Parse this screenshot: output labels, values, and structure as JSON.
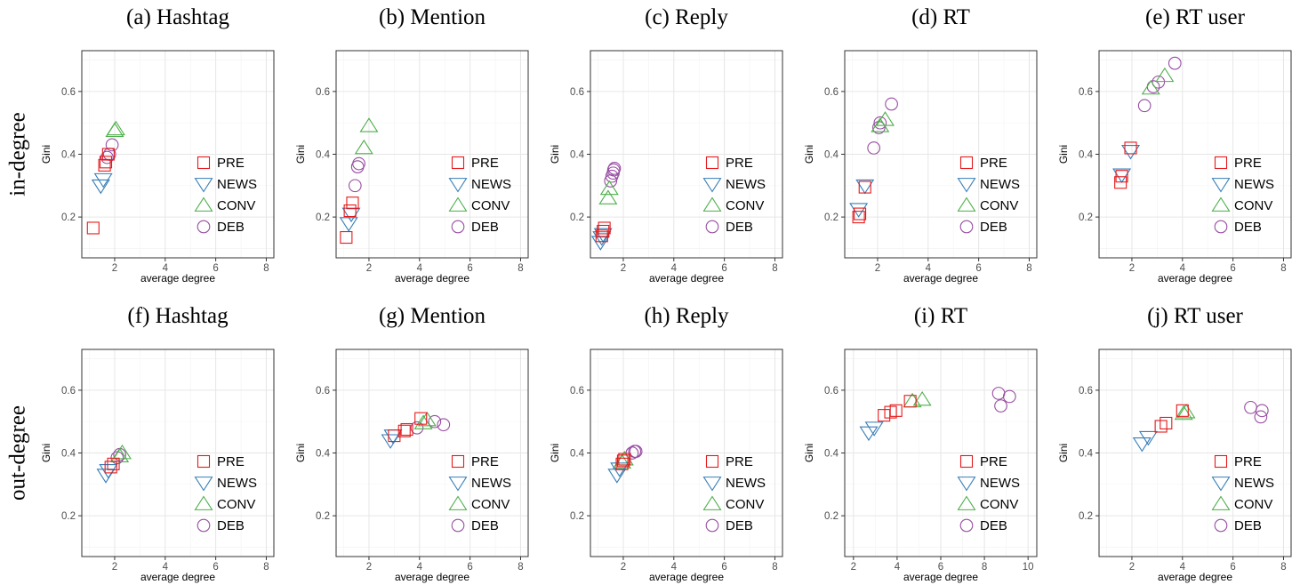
{
  "row_labels": [
    "in-degree",
    "out-degree"
  ],
  "legend": [
    {
      "key": "PRE",
      "label": "PRE",
      "color": "#e41a1c",
      "shape": "square"
    },
    {
      "key": "NEWS",
      "label": "NEWS",
      "color": "#377eb8",
      "shape": "triangle-down"
    },
    {
      "key": "CONV",
      "label": "CONV",
      "color": "#4daf4a",
      "shape": "triangle-up"
    },
    {
      "key": "DEB",
      "label": "DEB",
      "color": "#984ea3",
      "shape": "circle"
    }
  ],
  "chart_data": [
    {
      "type": "scatter",
      "title": "(a) Hashtag",
      "xlabel": "average degree",
      "ylabel": "Gini",
      "xlim": [
        0.7,
        8.3
      ],
      "ylim": [
        0.07,
        0.73
      ],
      "xticks": [
        2,
        4,
        6,
        8
      ],
      "yticks": [
        0.2,
        0.4,
        0.6
      ],
      "grid": true,
      "legend_position": "right",
      "series": [
        {
          "name": "PRE",
          "x": [
            1.15,
            1.6,
            1.65,
            1.75
          ],
          "y": [
            0.165,
            0.365,
            0.375,
            0.4
          ]
        },
        {
          "name": "NEWS",
          "x": [
            1.45,
            1.55
          ],
          "y": [
            0.3,
            0.32
          ]
        },
        {
          "name": "CONV",
          "x": [
            2.0,
            2.05
          ],
          "y": [
            0.475,
            0.48
          ]
        },
        {
          "name": "DEB",
          "x": [
            1.7,
            1.8,
            1.9
          ],
          "y": [
            0.39,
            0.4,
            0.43
          ]
        }
      ]
    },
    {
      "type": "scatter",
      "title": "(b) Mention",
      "xlabel": "average degree",
      "ylabel": "Gini",
      "xlim": [
        0.7,
        8.3
      ],
      "ylim": [
        0.07,
        0.73
      ],
      "xticks": [
        2,
        4,
        6,
        8
      ],
      "yticks": [
        0.2,
        0.4,
        0.6
      ],
      "grid": true,
      "legend_position": "right",
      "series": [
        {
          "name": "PRE",
          "x": [
            1.1,
            1.25,
            1.35
          ],
          "y": [
            0.135,
            0.22,
            0.245
          ]
        },
        {
          "name": "NEWS",
          "x": [
            1.2,
            1.3
          ],
          "y": [
            0.18,
            0.21
          ]
        },
        {
          "name": "CONV",
          "x": [
            1.8,
            2.0
          ],
          "y": [
            0.42,
            0.49
          ]
        },
        {
          "name": "DEB",
          "x": [
            1.45,
            1.55,
            1.6
          ],
          "y": [
            0.3,
            0.36,
            0.37
          ]
        }
      ]
    },
    {
      "type": "scatter",
      "title": "(c) Reply",
      "xlabel": "average degree",
      "ylabel": "Gini",
      "xlim": [
        0.7,
        8.3
      ],
      "ylim": [
        0.07,
        0.73
      ],
      "xticks": [
        2,
        4,
        6,
        8
      ],
      "yticks": [
        0.2,
        0.4,
        0.6
      ],
      "grid": true,
      "legend_position": "right",
      "series": [
        {
          "name": "PRE",
          "x": [
            1.15,
            1.2,
            1.25
          ],
          "y": [
            0.14,
            0.155,
            0.165
          ]
        },
        {
          "name": "NEWS",
          "x": [
            1.1,
            1.15,
            1.2
          ],
          "y": [
            0.12,
            0.135,
            0.145
          ]
        },
        {
          "name": "CONV",
          "x": [
            1.4,
            1.45
          ],
          "y": [
            0.26,
            0.29
          ]
        },
        {
          "name": "DEB",
          "x": [
            1.5,
            1.55,
            1.6,
            1.62,
            1.65
          ],
          "y": [
            0.315,
            0.33,
            0.34,
            0.35,
            0.355
          ]
        }
      ]
    },
    {
      "type": "scatter",
      "title": "(d) RT",
      "xlabel": "average degree",
      "ylabel": "Gini",
      "xlim": [
        0.7,
        8.3
      ],
      "ylim": [
        0.07,
        0.73
      ],
      "xticks": [
        2,
        4,
        6,
        8
      ],
      "yticks": [
        0.2,
        0.4,
        0.6
      ],
      "grid": true,
      "legend_position": "right",
      "series": [
        {
          "name": "PRE",
          "x": [
            1.25,
            1.3,
            1.5
          ],
          "y": [
            0.2,
            0.21,
            0.295
          ]
        },
        {
          "name": "NEWS",
          "x": [
            1.25,
            1.5
          ],
          "y": [
            0.225,
            0.3
          ]
        },
        {
          "name": "CONV",
          "x": [
            2.1,
            2.3
          ],
          "y": [
            0.49,
            0.51
          ]
        },
        {
          "name": "DEB",
          "x": [
            1.85,
            2.05,
            2.1,
            2.55
          ],
          "y": [
            0.42,
            0.485,
            0.5,
            0.56
          ]
        }
      ]
    },
    {
      "type": "scatter",
      "title": "(e) RT user",
      "xlabel": "average degree",
      "ylabel": "Gini",
      "xlim": [
        0.7,
        8.3
      ],
      "ylim": [
        0.07,
        0.73
      ],
      "xticks": [
        2,
        4,
        6,
        8
      ],
      "yticks": [
        0.2,
        0.4,
        0.6
      ],
      "grid": true,
      "legend_position": "right",
      "series": [
        {
          "name": "PRE",
          "x": [
            1.55,
            1.6,
            1.95
          ],
          "y": [
            0.31,
            0.33,
            0.42
          ]
        },
        {
          "name": "NEWS",
          "x": [
            1.6,
            1.95
          ],
          "y": [
            0.335,
            0.41
          ]
        },
        {
          "name": "CONV",
          "x": [
            2.75,
            3.3
          ],
          "y": [
            0.61,
            0.65
          ]
        },
        {
          "name": "DEB",
          "x": [
            2.5,
            2.85,
            3.05,
            3.7
          ],
          "y": [
            0.555,
            0.615,
            0.63,
            0.69
          ]
        }
      ]
    },
    {
      "type": "scatter",
      "title": "(f) Hashtag",
      "xlabel": "average degree",
      "ylabel": "Gini",
      "xlim": [
        0.7,
        8.3
      ],
      "ylim": [
        0.07,
        0.73
      ],
      "xticks": [
        2,
        4,
        6,
        8
      ],
      "yticks": [
        0.2,
        0.4,
        0.6
      ],
      "grid": true,
      "legend_position": "right",
      "series": [
        {
          "name": "PRE",
          "x": [
            1.85,
            1.95
          ],
          "y": [
            0.355,
            0.365
          ]
        },
        {
          "name": "NEWS",
          "x": [
            1.65,
            1.75
          ],
          "y": [
            0.33,
            0.345
          ]
        },
        {
          "name": "CONV",
          "x": [
            2.2,
            2.3
          ],
          "y": [
            0.39,
            0.4
          ]
        },
        {
          "name": "DEB",
          "x": [
            2.1,
            2.2
          ],
          "y": [
            0.385,
            0.395
          ]
        }
      ]
    },
    {
      "type": "scatter",
      "title": "(g) Mention",
      "xlabel": "average degree",
      "ylabel": "Gini",
      "xlim": [
        0.7,
        8.3
      ],
      "ylim": [
        0.07,
        0.73
      ],
      "xticks": [
        2,
        4,
        6,
        8
      ],
      "yticks": [
        0.2,
        0.4,
        0.6
      ],
      "grid": true,
      "legend_position": "right",
      "series": [
        {
          "name": "PRE",
          "x": [
            3.0,
            3.4,
            3.5,
            4.05
          ],
          "y": [
            0.455,
            0.47,
            0.475,
            0.51
          ]
        },
        {
          "name": "NEWS",
          "x": [
            2.85,
            2.95
          ],
          "y": [
            0.44,
            0.455
          ]
        },
        {
          "name": "CONV",
          "x": [
            4.15,
            4.3
          ],
          "y": [
            0.495,
            0.505
          ]
        },
        {
          "name": "DEB",
          "x": [
            3.9,
            4.6,
            4.95
          ],
          "y": [
            0.48,
            0.5,
            0.49
          ]
        }
      ]
    },
    {
      "type": "scatter",
      "title": "(h) Reply",
      "xlabel": "average degree",
      "ylabel": "Gini",
      "xlim": [
        0.7,
        8.3
      ],
      "ylim": [
        0.07,
        0.73
      ],
      "xticks": [
        2,
        4,
        6,
        8
      ],
      "yticks": [
        0.2,
        0.4,
        0.6
      ],
      "grid": true,
      "legend_position": "right",
      "series": [
        {
          "name": "PRE",
          "x": [
            1.95,
            2.0,
            2.05
          ],
          "y": [
            0.365,
            0.375,
            0.38
          ]
        },
        {
          "name": "NEWS",
          "x": [
            1.75,
            1.85
          ],
          "y": [
            0.33,
            0.35
          ]
        },
        {
          "name": "CONV",
          "x": [
            1.95,
            2.05
          ],
          "y": [
            0.37,
            0.38
          ]
        },
        {
          "name": "DEB",
          "x": [
            2.35,
            2.45,
            2.5
          ],
          "y": [
            0.4,
            0.405,
            0.405
          ]
        }
      ]
    },
    {
      "type": "scatter",
      "title": "(i) RT",
      "xlabel": "average degree",
      "ylabel": "Gini",
      "xlim": [
        1.6,
        10.4
      ],
      "ylim": [
        0.07,
        0.73
      ],
      "xticks": [
        2,
        4,
        6,
        8,
        10
      ],
      "yticks": [
        0.2,
        0.4,
        0.6
      ],
      "grid": true,
      "legend_position": "right",
      "series": [
        {
          "name": "PRE",
          "x": [
            3.4,
            3.7,
            3.95,
            4.6
          ],
          "y": [
            0.52,
            0.53,
            0.535,
            0.565
          ]
        },
        {
          "name": "NEWS",
          "x": [
            2.7,
            2.95
          ],
          "y": [
            0.465,
            0.48
          ]
        },
        {
          "name": "CONV",
          "x": [
            4.7,
            5.15
          ],
          "y": [
            0.565,
            0.57
          ]
        },
        {
          "name": "DEB",
          "x": [
            8.65,
            8.75,
            9.15
          ],
          "y": [
            0.59,
            0.55,
            0.58
          ]
        }
      ]
    },
    {
      "type": "scatter",
      "title": "(j) RT user",
      "xlabel": "average degree",
      "ylabel": "Gini",
      "xlim": [
        0.7,
        8.3
      ],
      "ylim": [
        0.07,
        0.73
      ],
      "xticks": [
        2,
        4,
        6,
        8
      ],
      "yticks": [
        0.2,
        0.4,
        0.6
      ],
      "grid": true,
      "legend_position": "right",
      "series": [
        {
          "name": "PRE",
          "x": [
            3.15,
            3.35,
            4.0
          ],
          "y": [
            0.485,
            0.495,
            0.535
          ]
        },
        {
          "name": "NEWS",
          "x": [
            2.4,
            2.65
          ],
          "y": [
            0.43,
            0.45
          ]
        },
        {
          "name": "CONV",
          "x": [
            4.05,
            4.15
          ],
          "y": [
            0.525,
            0.53
          ]
        },
        {
          "name": "DEB",
          "x": [
            6.7,
            7.1,
            7.15
          ],
          "y": [
            0.545,
            0.515,
            0.535
          ]
        }
      ]
    }
  ]
}
